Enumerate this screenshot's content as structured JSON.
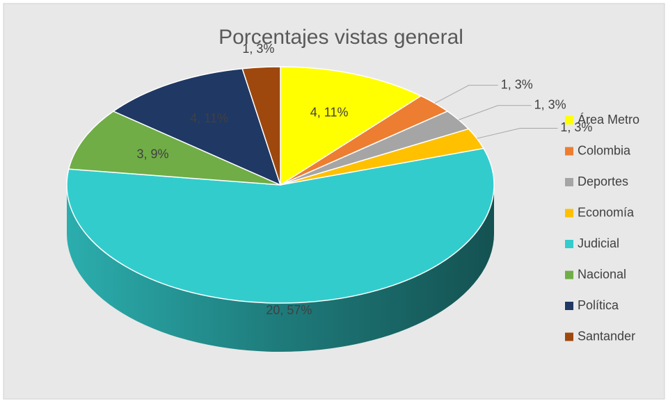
{
  "chart_data": {
    "type": "pie",
    "title": "Porcentajes vistas general",
    "categories": [
      "Área Metro",
      "Colombia",
      "Deportes",
      "Economía",
      "Judicial",
      "Nacional",
      "Política",
      "Santander"
    ],
    "values": [
      4,
      1,
      1,
      1,
      20,
      3,
      4,
      1
    ],
    "value_labels": [
      "4, 11%",
      "1, 3%",
      "1, 3%",
      "1, 3%",
      "20, 57%",
      "3, 9%",
      "4, 11%",
      "1, 3%"
    ],
    "colors": [
      "#ffff00",
      "#ed7d31",
      "#a5a5a5",
      "#ffc000",
      "#33cccc",
      "#70ad47",
      "#203864",
      "#9e480e"
    ],
    "legend": "right"
  }
}
